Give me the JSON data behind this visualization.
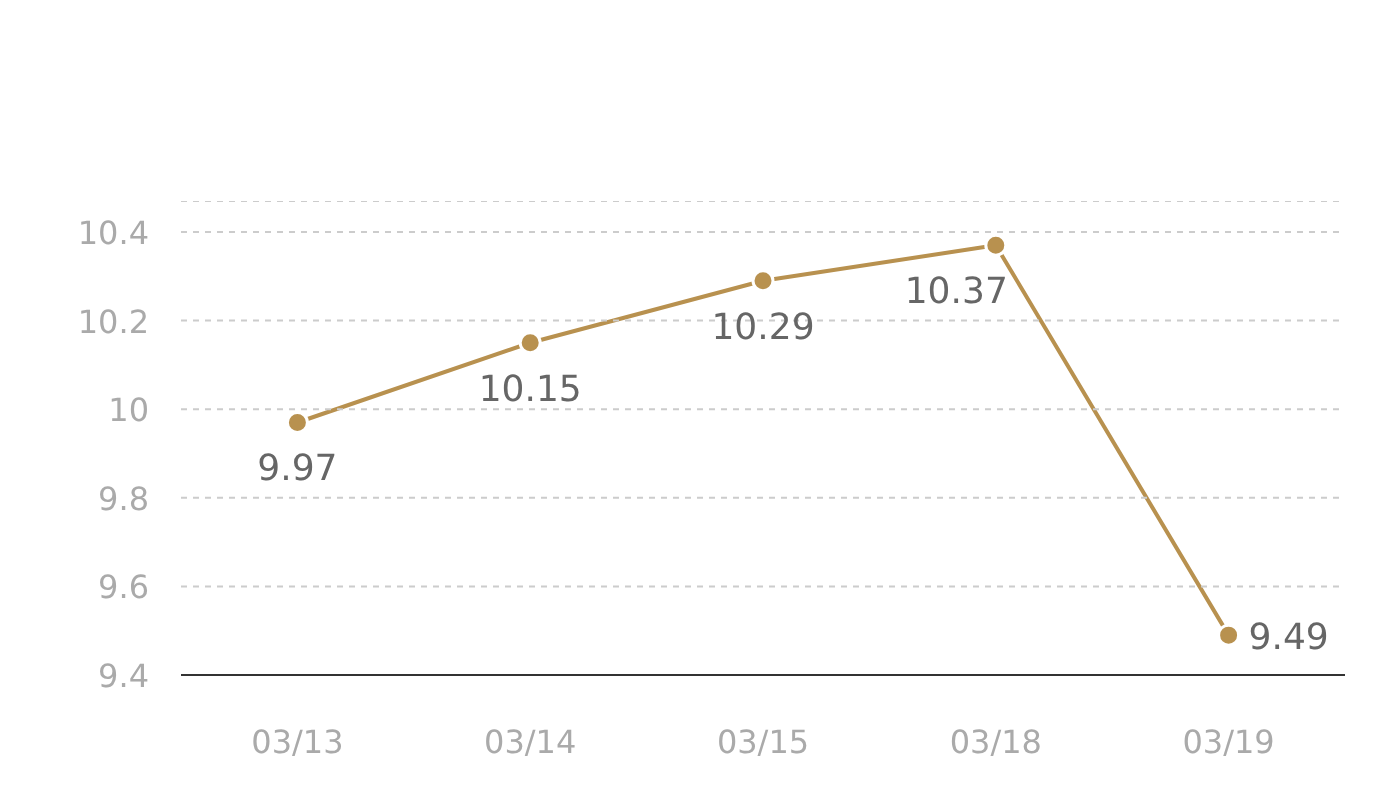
{
  "chart_data": {
    "type": "line",
    "categories": [
      "03/13",
      "03/14",
      "03/15",
      "03/18",
      "03/19"
    ],
    "series": [
      {
        "color": "#b8914f",
        "values": [
          9.97,
          10.15,
          10.29,
          10.37,
          9.49
        ]
      }
    ],
    "ylim": [
      9.4,
      10.47
    ],
    "yticks": [
      9.4,
      9.6,
      9.8,
      10,
      10.2,
      10.4,
      {
        "value": 10.47,
        "label": null
      }
    ],
    "grid": "y",
    "data_labels": true,
    "marker": "circle",
    "line_style": "solid"
  }
}
